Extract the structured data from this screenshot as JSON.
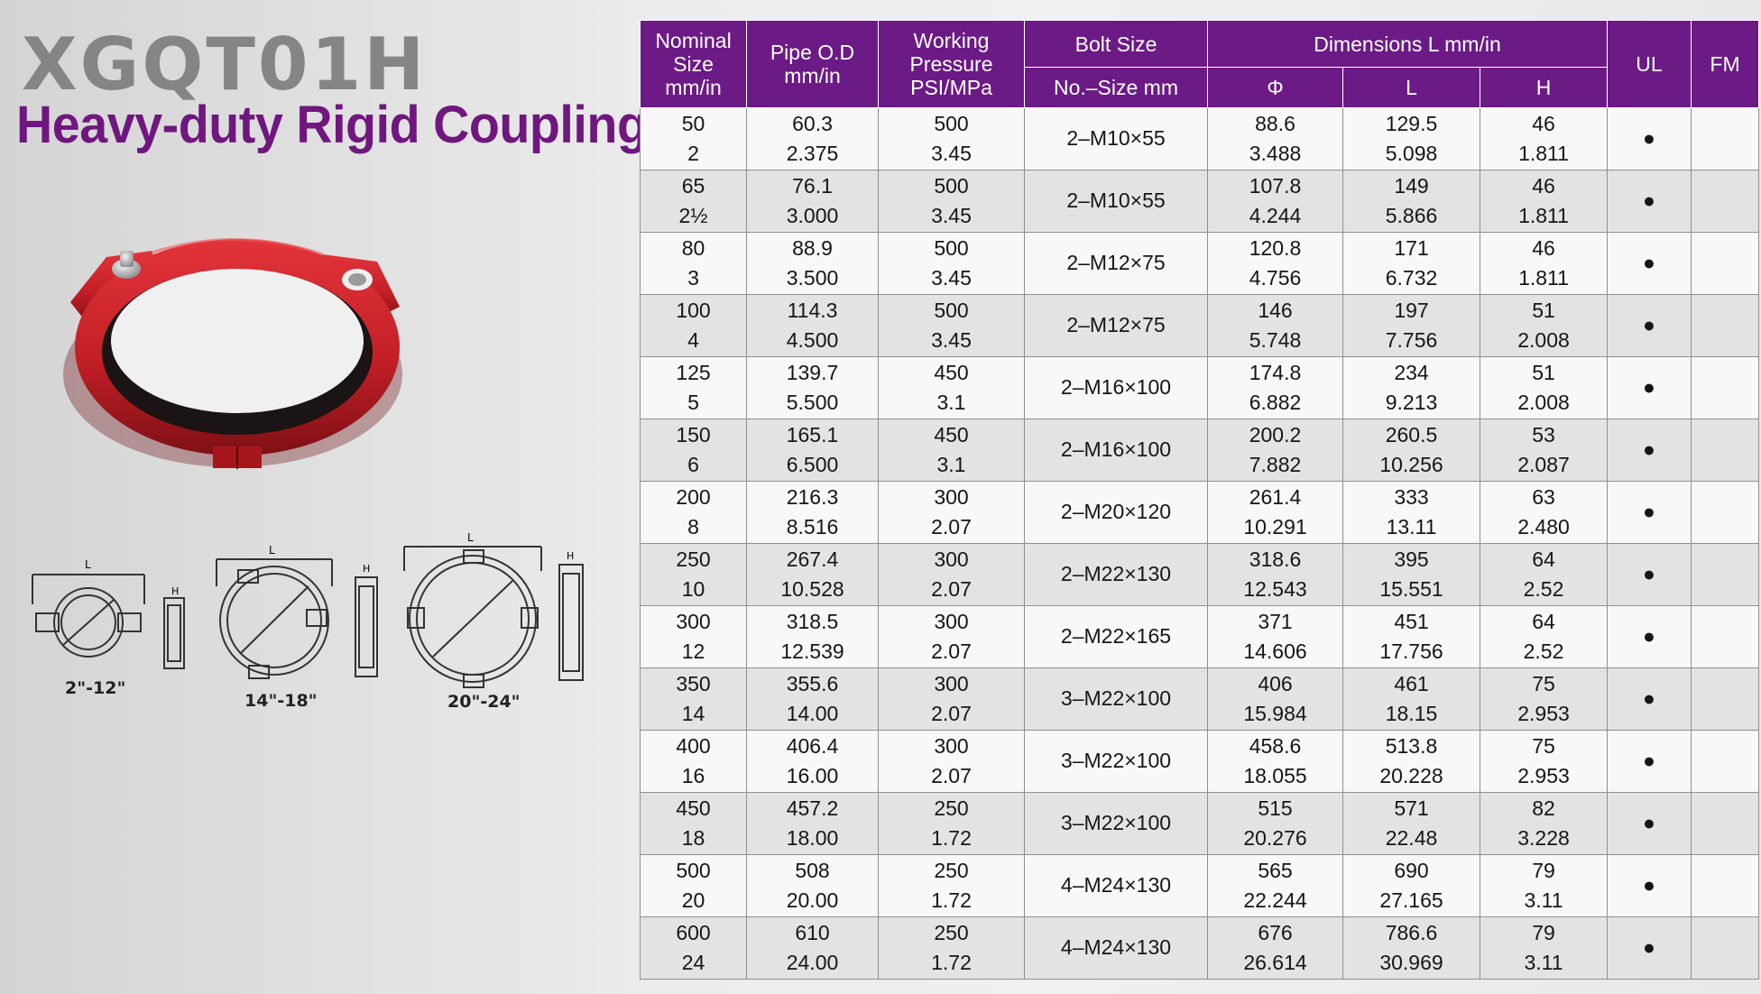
{
  "header": {
    "model": "XGQT01H",
    "title": "Heavy-duty Rigid Coupling"
  },
  "drawings": [
    {
      "range": "2\"-12\""
    },
    {
      "range": "14\"-18\""
    },
    {
      "range": "20\"-24\""
    }
  ],
  "drawing_marks": {
    "length": "L",
    "height": "H",
    "diameter": "Φ"
  },
  "colors": {
    "brand_purple": "#6c1a86",
    "coupling_red": "#c8222a",
    "row_alt": "#e3e3e3"
  },
  "table": {
    "headers": {
      "nominal_size": "Nominal Size mm/in",
      "pipe_od": "Pipe O.D mm/in",
      "working_pressure": "Working Pressure PSI/MPa",
      "bolt_size": "Bolt Size",
      "bolt_sub": "No.–Size mm",
      "dimensions": "Dimensions L  mm/in",
      "dim_phi": "Φ",
      "dim_l": "L",
      "dim_h": "H",
      "ul": "UL",
      "fm": "FM"
    },
    "rows": [
      {
        "nominal": [
          "50",
          "2"
        ],
        "od": [
          "60.3",
          "2.375"
        ],
        "pressure": [
          "500",
          "3.45"
        ],
        "bolt": "2–M10×55",
        "phi": [
          "88.6",
          "3.488"
        ],
        "l": [
          "129.5",
          "5.098"
        ],
        "h": [
          "46",
          "1.811"
        ],
        "ul": "●",
        "fm": ""
      },
      {
        "nominal": [
          "65",
          "2½"
        ],
        "od": [
          "76.1",
          "3.000"
        ],
        "pressure": [
          "500",
          "3.45"
        ],
        "bolt": "2–M10×55",
        "phi": [
          "107.8",
          "4.244"
        ],
        "l": [
          "149",
          "5.866"
        ],
        "h": [
          "46",
          "1.811"
        ],
        "ul": "●",
        "fm": ""
      },
      {
        "nominal": [
          "80",
          "3"
        ],
        "od": [
          "88.9",
          "3.500"
        ],
        "pressure": [
          "500",
          "3.45"
        ],
        "bolt": "2–M12×75",
        "phi": [
          "120.8",
          "4.756"
        ],
        "l": [
          "171",
          "6.732"
        ],
        "h": [
          "46",
          "1.811"
        ],
        "ul": "●",
        "fm": ""
      },
      {
        "nominal": [
          "100",
          "4"
        ],
        "od": [
          "114.3",
          "4.500"
        ],
        "pressure": [
          "500",
          "3.45"
        ],
        "bolt": "2–M12×75",
        "phi": [
          "146",
          "5.748"
        ],
        "l": [
          "197",
          "7.756"
        ],
        "h": [
          "51",
          "2.008"
        ],
        "ul": "●",
        "fm": ""
      },
      {
        "nominal": [
          "125",
          "5"
        ],
        "od": [
          "139.7",
          "5.500"
        ],
        "pressure": [
          "450",
          "3.1"
        ],
        "bolt": "2–M16×100",
        "phi": [
          "174.8",
          "6.882"
        ],
        "l": [
          "234",
          "9.213"
        ],
        "h": [
          "51",
          "2.008"
        ],
        "ul": "●",
        "fm": ""
      },
      {
        "nominal": [
          "150",
          "6"
        ],
        "od": [
          "165.1",
          "6.500"
        ],
        "pressure": [
          "450",
          "3.1"
        ],
        "bolt": "2–M16×100",
        "phi": [
          "200.2",
          "7.882"
        ],
        "l": [
          "260.5",
          "10.256"
        ],
        "h": [
          "53",
          "2.087"
        ],
        "ul": "●",
        "fm": ""
      },
      {
        "nominal": [
          "200",
          "8"
        ],
        "od": [
          "216.3",
          "8.516"
        ],
        "pressure": [
          "300",
          "2.07"
        ],
        "bolt": "2–M20×120",
        "phi": [
          "261.4",
          "10.291"
        ],
        "l": [
          "333",
          "13.11"
        ],
        "h": [
          "63",
          "2.480"
        ],
        "ul": "●",
        "fm": ""
      },
      {
        "nominal": [
          "250",
          "10"
        ],
        "od": [
          "267.4",
          "10.528"
        ],
        "pressure": [
          "300",
          "2.07"
        ],
        "bolt": "2–M22×130",
        "phi": [
          "318.6",
          "12.543"
        ],
        "l": [
          "395",
          "15.551"
        ],
        "h": [
          "64",
          "2.52"
        ],
        "ul": "●",
        "fm": ""
      },
      {
        "nominal": [
          "300",
          "12"
        ],
        "od": [
          "318.5",
          "12.539"
        ],
        "pressure": [
          "300",
          "2.07"
        ],
        "bolt": "2–M22×165",
        "phi": [
          "371",
          "14.606"
        ],
        "l": [
          "451",
          "17.756"
        ],
        "h": [
          "64",
          "2.52"
        ],
        "ul": "●",
        "fm": ""
      },
      {
        "nominal": [
          "350",
          "14"
        ],
        "od": [
          "355.6",
          "14.00"
        ],
        "pressure": [
          "300",
          "2.07"
        ],
        "bolt": "3–M22×100",
        "phi": [
          "406",
          "15.984"
        ],
        "l": [
          "461",
          "18.15"
        ],
        "h": [
          "75",
          "2.953"
        ],
        "ul": "●",
        "fm": ""
      },
      {
        "nominal": [
          "400",
          "16"
        ],
        "od": [
          "406.4",
          "16.00"
        ],
        "pressure": [
          "300",
          "2.07"
        ],
        "bolt": "3–M22×100",
        "phi": [
          "458.6",
          "18.055"
        ],
        "l": [
          "513.8",
          "20.228"
        ],
        "h": [
          "75",
          "2.953"
        ],
        "ul": "●",
        "fm": ""
      },
      {
        "nominal": [
          "450",
          "18"
        ],
        "od": [
          "457.2",
          "18.00"
        ],
        "pressure": [
          "250",
          "1.72"
        ],
        "bolt": "3–M22×100",
        "phi": [
          "515",
          "20.276"
        ],
        "l": [
          "571",
          "22.48"
        ],
        "h": [
          "82",
          "3.228"
        ],
        "ul": "●",
        "fm": ""
      },
      {
        "nominal": [
          "500",
          "20"
        ],
        "od": [
          "508",
          "20.00"
        ],
        "pressure": [
          "250",
          "1.72"
        ],
        "bolt": "4–M24×130",
        "phi": [
          "565",
          "22.244"
        ],
        "l": [
          "690",
          "27.165"
        ],
        "h": [
          "79",
          "3.11"
        ],
        "ul": "●",
        "fm": ""
      },
      {
        "nominal": [
          "600",
          "24"
        ],
        "od": [
          "610",
          "24.00"
        ],
        "pressure": [
          "250",
          "1.72"
        ],
        "bolt": "4–M24×130",
        "phi": [
          "676",
          "26.614"
        ],
        "l": [
          "786.6",
          "30.969"
        ],
        "h": [
          "79",
          "3.11"
        ],
        "ul": "●",
        "fm": ""
      }
    ]
  }
}
